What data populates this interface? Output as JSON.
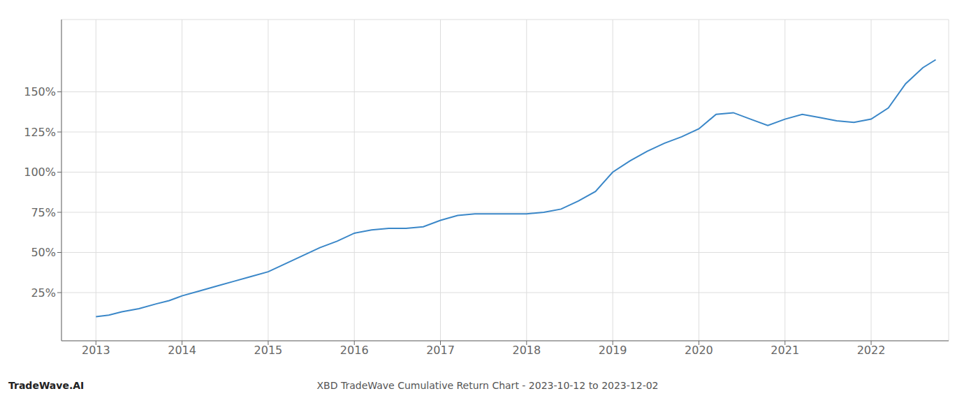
{
  "chart_data": {
    "type": "line",
    "title": "XBD TradeWave Cumulative Return Chart - 2023-10-12 to 2023-12-02",
    "annotations": [
      "TradeWave.AI"
    ],
    "color": "#3a87c8",
    "grid": true,
    "x": [
      2013.0,
      2013.15,
      2013.3,
      2013.5,
      2013.7,
      2013.85,
      2014.0,
      2014.2,
      2014.4,
      2014.6,
      2014.8,
      2015.0,
      2015.2,
      2015.4,
      2015.6,
      2015.8,
      2016.0,
      2016.2,
      2016.4,
      2016.6,
      2016.8,
      2017.0,
      2017.2,
      2017.4,
      2017.6,
      2017.8,
      2018.0,
      2018.2,
      2018.4,
      2018.6,
      2018.8,
      2019.0,
      2019.2,
      2019.4,
      2019.6,
      2019.8,
      2020.0,
      2020.2,
      2020.4,
      2020.6,
      2020.8,
      2021.0,
      2021.2,
      2021.4,
      2021.6,
      2021.8,
      2022.0,
      2022.2,
      2022.4,
      2022.6,
      2022.75
    ],
    "values": [
      10,
      11,
      13,
      15,
      18,
      20,
      23,
      26,
      29,
      32,
      35,
      38,
      43,
      48,
      53,
      57,
      62,
      64,
      65,
      65,
      66,
      70,
      73,
      74,
      74,
      74,
      74,
      75,
      77,
      82,
      88,
      100,
      107,
      113,
      118,
      122,
      127,
      136,
      137,
      133,
      129,
      133,
      136,
      134,
      132,
      131,
      133,
      140,
      155,
      165,
      170
    ],
    "xlim": [
      2012.6,
      2022.9
    ],
    "xticks": [
      2013,
      2014,
      2015,
      2016,
      2017,
      2018,
      2019,
      2020,
      2021,
      2022
    ],
    "ylim": [
      -5,
      195
    ],
    "yticks": [
      {
        "value": 25,
        "label": "25%"
      },
      {
        "value": 50,
        "label": "50%"
      },
      {
        "value": 75,
        "label": "75%"
      },
      {
        "value": 100,
        "label": "100%"
      },
      {
        "value": 125,
        "label": "125%"
      },
      {
        "value": 150,
        "label": "150%"
      }
    ]
  }
}
